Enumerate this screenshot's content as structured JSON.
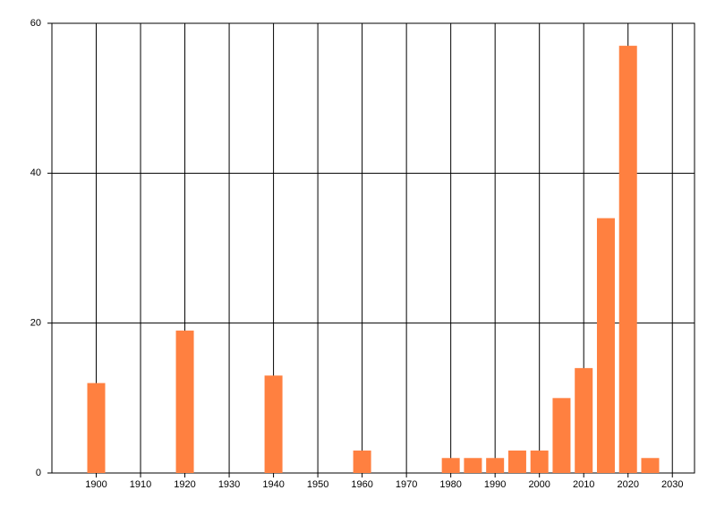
{
  "chart_data": {
    "type": "bar",
    "x": [
      1900,
      1920,
      1940,
      1960,
      1980,
      1985,
      1990,
      1995,
      2000,
      2005,
      2010,
      2015,
      2020,
      2025
    ],
    "values": [
      12,
      19,
      13,
      3,
      2,
      2,
      2,
      3,
      3,
      10,
      14,
      34,
      57,
      2
    ],
    "color": "#ff8040",
    "xlim": [
      1890,
      2035
    ],
    "xticks": [
      1900,
      1910,
      1920,
      1930,
      1940,
      1950,
      1960,
      1970,
      1980,
      1990,
      2000,
      2010,
      2020,
      2030
    ],
    "ylim": [
      0,
      60
    ],
    "yticks": [
      0,
      20,
      40,
      60
    ],
    "grid": true
  }
}
